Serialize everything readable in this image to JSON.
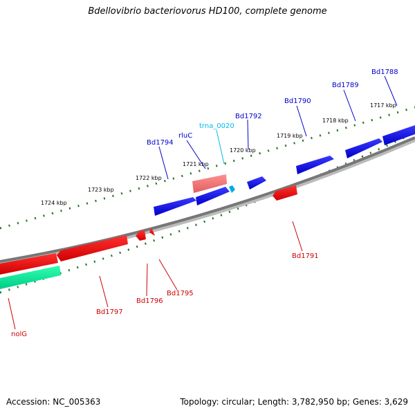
{
  "title": "Bdellovibrio bacteriovorus HD100, complete genome",
  "footer": {
    "accession": "Accession: NC_005363",
    "stats": "Topology: circular; Length: 3,782,950 bp; Genes: 3,629"
  },
  "ruler": [
    "1717 kbp",
    "1718 kbp",
    "1719 kbp",
    "1720 kbp",
    "1721 kbp",
    "1722 kbp",
    "1723 kbp",
    "1724 kbp"
  ],
  "genes": [
    {
      "label": "Bd1788",
      "strand": "forward",
      "color": "#0000cc"
    },
    {
      "label": "Bd1789",
      "strand": "forward",
      "color": "#0000cc"
    },
    {
      "label": "Bd1790",
      "strand": "forward",
      "color": "#0000cc"
    },
    {
      "label": "Bd1792",
      "strand": "forward",
      "color": "#0000cc"
    },
    {
      "label": "trna_0020",
      "strand": "forward",
      "color": "#00bbee"
    },
    {
      "label": "rluC",
      "strand": "forward",
      "color": "#0000cc"
    },
    {
      "label": "Bd1794",
      "strand": "forward",
      "color": "#0000cc"
    },
    {
      "label": "Bd1791",
      "strand": "reverse",
      "color": "#cc0000"
    },
    {
      "label": "Bd1795",
      "strand": "reverse",
      "color": "#cc0000"
    },
    {
      "label": "Bd1796",
      "strand": "reverse",
      "color": "#cc0000"
    },
    {
      "label": "Bd1797",
      "strand": "reverse",
      "color": "#cc0000"
    },
    {
      "label": "nolG",
      "strand": "reverse",
      "color": "#cc0000"
    }
  ],
  "colors": {
    "forward_gene": "#0000ff",
    "reverse_gene": "#ff0000",
    "rrna": "#ff7f7f",
    "trna": "#00bbff",
    "other": "#00ee99",
    "backbone": "#777777",
    "ticks": "#227722"
  }
}
